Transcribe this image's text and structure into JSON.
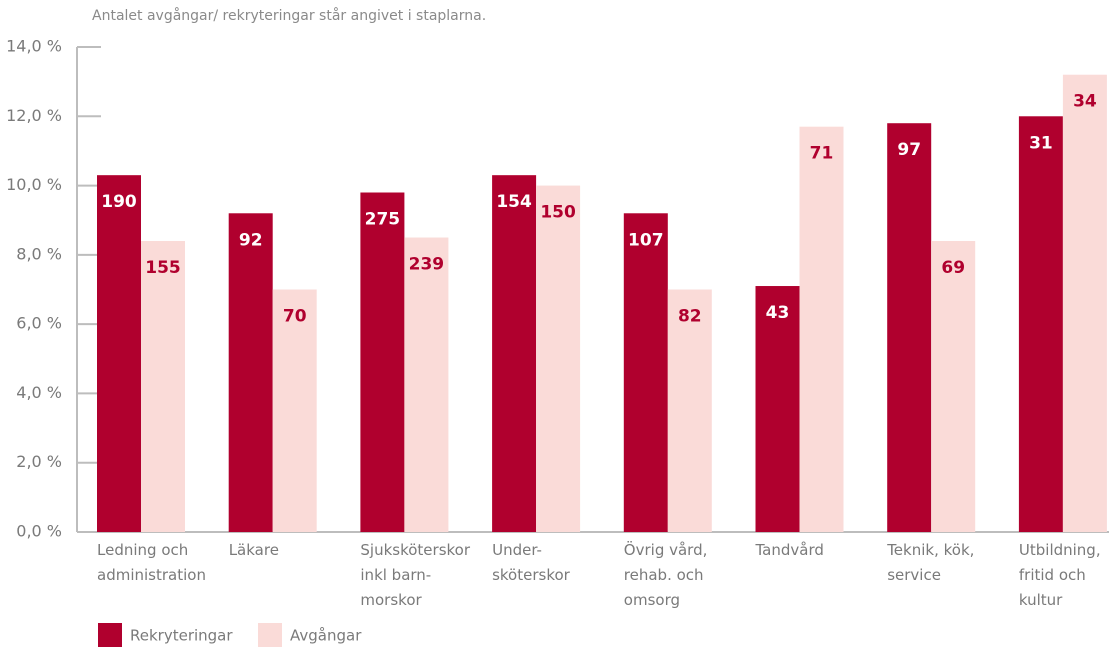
{
  "chart_data": {
    "type": "bar",
    "subtitle": "Antalet avgångar/ rekryteringar står angivet i staplarna.",
    "categories": [
      [
        "Ledning och",
        "administration"
      ],
      [
        "Läkare"
      ],
      [
        "Sjuksköterskor",
        "inkl barn-",
        "morskor"
      ],
      [
        "Under-",
        "sköterskor"
      ],
      [
        "Övrig vård,",
        "rehab. och",
        "omsorg"
      ],
      [
        "Tandvård"
      ],
      [
        "Teknik, kök,",
        "service"
      ],
      [
        "Utbildning,",
        "fritid och",
        "kultur"
      ]
    ],
    "series": [
      {
        "name": "Rekryteringar",
        "color": "#b0002e",
        "label_color": "#ffffff",
        "values": [
          10.3,
          9.2,
          9.8,
          10.3,
          9.2,
          7.1,
          11.8,
          12.0
        ],
        "counts": [
          190,
          92,
          275,
          154,
          107,
          43,
          97,
          31
        ]
      },
      {
        "name": "Avgångar",
        "color": "#fadbd8",
        "label_color": "#b0002e",
        "values": [
          8.4,
          7.0,
          8.5,
          10.0,
          7.0,
          11.7,
          8.4,
          13.2
        ],
        "counts": [
          155,
          70,
          239,
          150,
          82,
          71,
          69,
          34
        ]
      }
    ],
    "ylim": [
      0,
      14
    ],
    "yticks": [
      {
        "value": 0,
        "label": "0,0 %"
      },
      {
        "value": 2,
        "label": "2,0 %"
      },
      {
        "value": 4,
        "label": "4,0 %"
      },
      {
        "value": 6,
        "label": "6,0 %"
      },
      {
        "value": 8,
        "label": "8,0 %"
      },
      {
        "value": 10,
        "label": "10,0 %"
      },
      {
        "value": 12,
        "label": "12,0 %"
      },
      {
        "value": 14,
        "label": "14,0 %"
      }
    ]
  }
}
